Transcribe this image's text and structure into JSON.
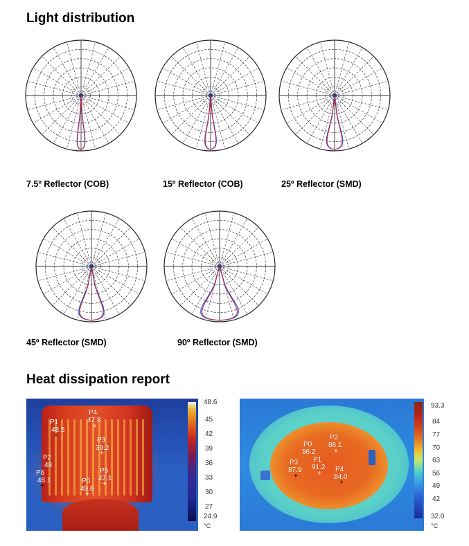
{
  "light_distribution": {
    "title": "Light distribution",
    "charts": [
      {
        "caption": "7.5º Reflector (COB)"
      },
      {
        "caption": "15º Reflector (COB)"
      },
      {
        "caption": "25º Reflector (SMD)"
      },
      {
        "caption": "45º Reflector (SMD)"
      },
      {
        "caption": "90º Reflector (SMD)"
      }
    ]
  },
  "heat_dissipation": {
    "title": "Heat dissipation report",
    "images": [
      {
        "scale_max": "48.6",
        "scale_min": "24.9",
        "ticks": [
          "45",
          "42",
          "39",
          "36",
          "33",
          "30",
          "27"
        ],
        "unit": "°C",
        "points": [
          {
            "name": "P1",
            "value": "48.5"
          },
          {
            "name": "P4",
            "value": "47.8"
          },
          {
            "name": "P3",
            "value": "39.2"
          },
          {
            "name": "P2",
            "value": "48"
          },
          {
            "name": "P6",
            "value": "48.1"
          },
          {
            "name": "P0",
            "value": "49.6"
          },
          {
            "name": "P5",
            "value": "47.1"
          }
        ]
      },
      {
        "scale_max": "93.3",
        "scale_min": "32.0",
        "ticks": [
          "84",
          "77",
          "70",
          "63",
          "56",
          "49",
          "42"
        ],
        "unit": "°C",
        "points": [
          {
            "name": "P2",
            "value": "86.1"
          },
          {
            "name": "P0",
            "value": "96.2"
          },
          {
            "name": "P1",
            "value": "91.2"
          },
          {
            "name": "P3",
            "value": "87.9"
          },
          {
            "name": "P4",
            "value": "84.0"
          }
        ]
      }
    ]
  }
}
